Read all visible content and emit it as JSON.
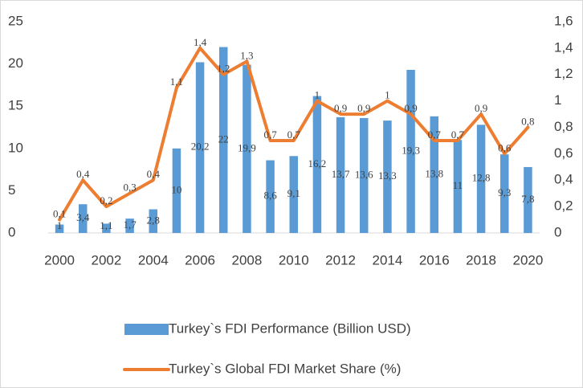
{
  "chart_data": {
    "type": "bar-line",
    "categories": [
      "2000",
      null,
      "2002",
      null,
      "2004",
      null,
      "2006",
      null,
      "2008",
      null,
      "2010",
      null,
      "2012",
      null,
      "2014",
      null,
      "2016",
      null,
      "2018",
      null,
      "2020"
    ],
    "series": [
      {
        "name": "Turkey`s FDI Performance (Billion USD)",
        "type": "bar",
        "color": "#5b9bd5",
        "values": [
          1,
          3.4,
          1.1,
          1.7,
          2.8,
          10,
          20.2,
          22,
          19.9,
          8.6,
          9.1,
          16.2,
          13.7,
          13.6,
          13.3,
          19.3,
          13.8,
          11,
          12.8,
          9.3,
          7.8
        ],
        "value_labels": [
          "1",
          "3,4",
          "1,1",
          "1,7",
          "2,8",
          "10",
          "20,2",
          "22",
          "19,9",
          "8,6",
          "9,1",
          "16,2",
          "13,7",
          "13,6",
          "13,3",
          "19,3",
          "13,8",
          "11",
          "12,8",
          "9,3",
          "7,8"
        ]
      },
      {
        "name": "Turkey`s Global FDI Market Share (%)",
        "type": "line",
        "axis": "y2",
        "color": "#ed7d31",
        "values": [
          0.1,
          0.4,
          0.2,
          0.3,
          0.4,
          1.1,
          1.4,
          1.2,
          1.3,
          0.7,
          0.7,
          1,
          0.9,
          0.9,
          1,
          0.9,
          0.7,
          0.7,
          0.9,
          0.6,
          0.8
        ],
        "value_labels": [
          "0,1",
          "0,4",
          "0,2",
          "0,3",
          "0,4",
          "1,1",
          "1,4",
          "1,2",
          "1,3",
          "0,7",
          "0,7",
          "1",
          "0,9",
          "0,9",
          "1",
          "0,9",
          "0,7",
          "0,7",
          "0,9",
          "0,6",
          "0,8"
        ]
      }
    ],
    "ylim": [
      0,
      25
    ],
    "yticks": [
      0,
      5,
      10,
      15,
      20,
      25
    ],
    "y2lim": [
      0,
      1.6
    ],
    "y2ticks": [
      0,
      {
        "value": 0.2,
        "label": "0,2"
      },
      {
        "value": 0.4,
        "label": "0,4"
      },
      {
        "value": 0.6,
        "label": "0,6"
      },
      {
        "value": 0.8,
        "label": "0,8"
      },
      1,
      {
        "value": 1.2,
        "label": "1,2"
      },
      {
        "value": 1.4,
        "label": "1,4"
      },
      {
        "value": 1.6,
        "label": "1,6"
      }
    ],
    "legend": "bottom"
  }
}
